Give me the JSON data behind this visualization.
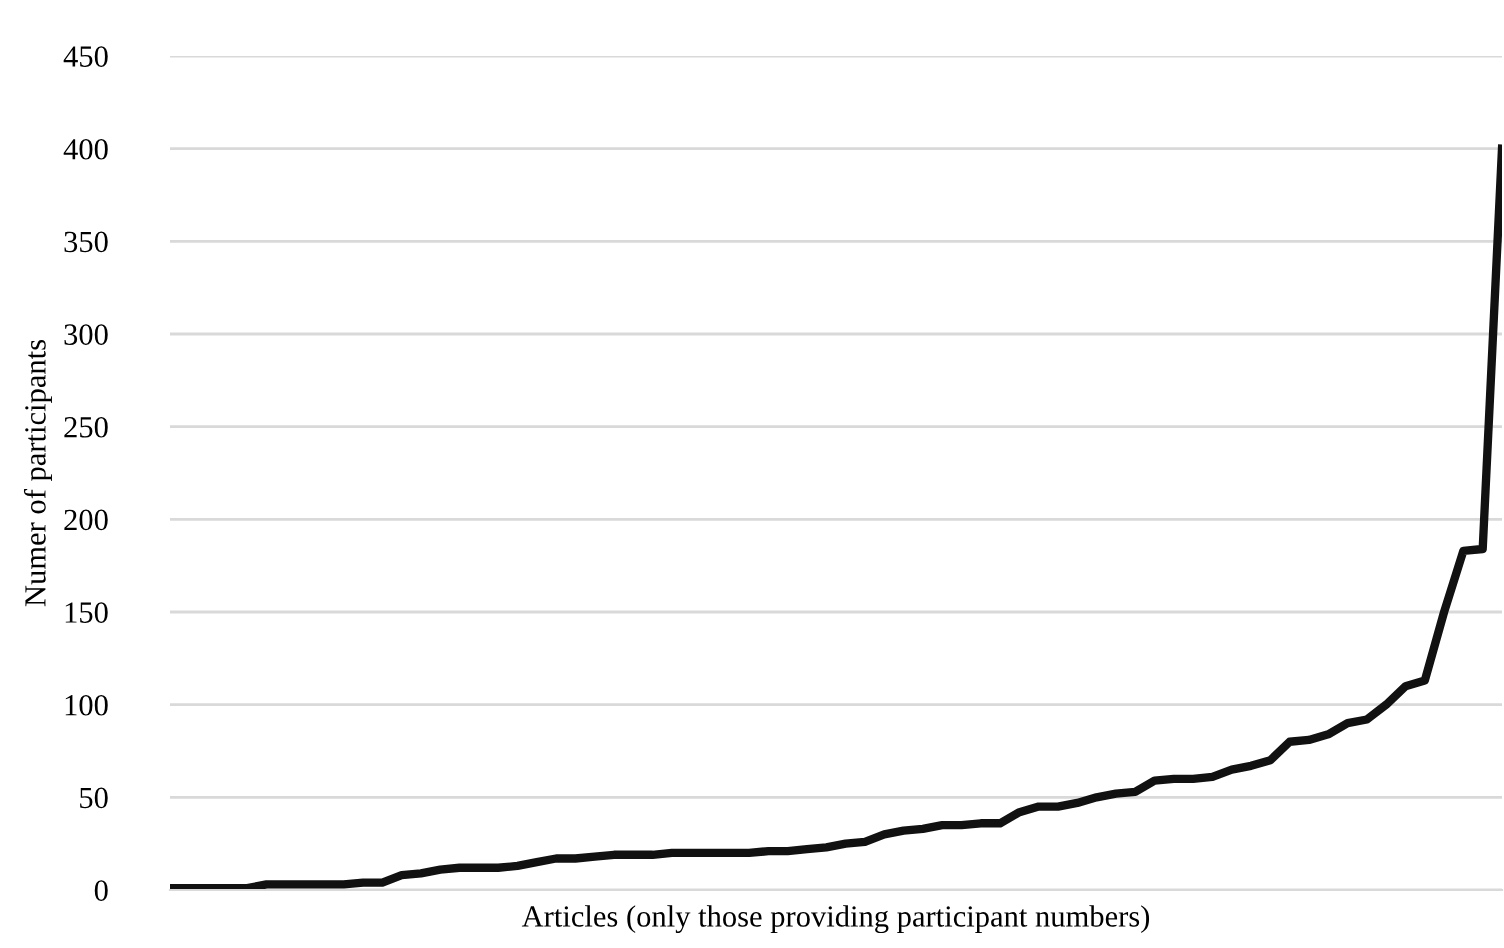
{
  "chart_data": {
    "type": "line",
    "xlabel": "Articles (only those providing participant numbers)",
    "ylabel": "Numer of participants",
    "categories": [
      null,
      null,
      null,
      null,
      null,
      null,
      null,
      null,
      null,
      null,
      null,
      null,
      null,
      null,
      null,
      null,
      null,
      null,
      null,
      null,
      null,
      null,
      null,
      null,
      null,
      null,
      null,
      null,
      null,
      null,
      null,
      null,
      null,
      null,
      null,
      null,
      null,
      null,
      null,
      null,
      null,
      null,
      null,
      null,
      null,
      null,
      null,
      null,
      null,
      null,
      null,
      null,
      null,
      null,
      null,
      null,
      null,
      null,
      null,
      null,
      null,
      null,
      null,
      null,
      null,
      null,
      null,
      null,
      null,
      null
    ],
    "series": [
      {
        "color": "#111111",
        "values": [
          1,
          1,
          1,
          1,
          1,
          3,
          3,
          3,
          3,
          3,
          4,
          4,
          8,
          9,
          11,
          12,
          12,
          12,
          13,
          15,
          17,
          17,
          18,
          19,
          19,
          19,
          20,
          20,
          20,
          20,
          20,
          21,
          21,
          22,
          23,
          25,
          26,
          30,
          32,
          33,
          35,
          35,
          36,
          36,
          42,
          45,
          45,
          47,
          50,
          52,
          53,
          59,
          60,
          60,
          61,
          65,
          67,
          70,
          80,
          81,
          84,
          90,
          92,
          100,
          110,
          113,
          150,
          183,
          184,
          400
        ]
      }
    ],
    "ylim": [
      0,
      450
    ],
    "yticks": [
      0,
      50,
      100,
      150,
      200,
      250,
      300,
      350,
      400,
      450
    ],
    "grid": "y",
    "line_style": "solid",
    "marker": "none"
  }
}
